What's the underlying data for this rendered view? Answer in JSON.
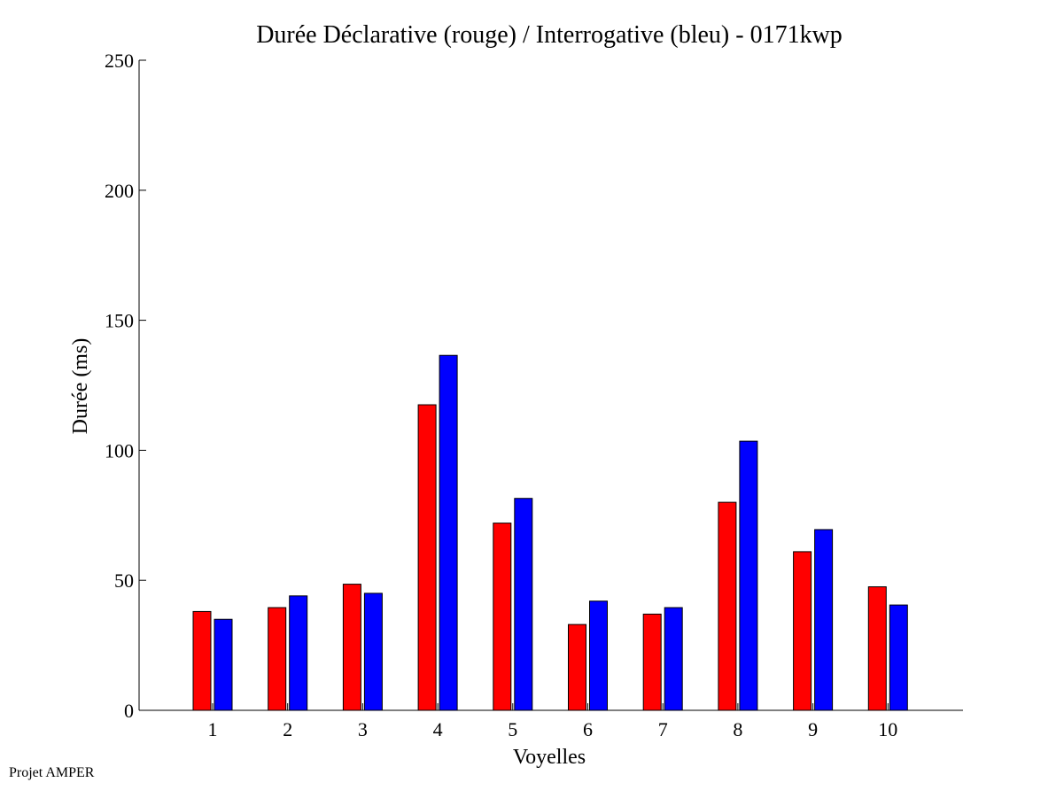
{
  "chart_data": {
    "type": "bar",
    "title": "Durée Déclarative (rouge) / Interrogative (bleu) - 0171kwp",
    "xlabel": "Voyelles",
    "ylabel": "Durée (ms)",
    "ylim": [
      0,
      250
    ],
    "yticks": [
      0,
      50,
      100,
      150,
      200,
      250
    ],
    "categories": [
      "1",
      "2",
      "3",
      "4",
      "5",
      "6",
      "7",
      "8",
      "9",
      "10"
    ],
    "series": [
      {
        "color": "#ff0000",
        "values": [
          38,
          39.5,
          48.5,
          117.5,
          72,
          33,
          37,
          80,
          61,
          47.5
        ]
      },
      {
        "color": "#0000ff",
        "values": [
          35,
          44,
          45,
          136.5,
          81.5,
          42,
          39.5,
          103.5,
          69.5,
          40.5
        ]
      }
    ],
    "grid": false,
    "legend": "none"
  },
  "footer": {
    "note": "Projet AMPER"
  }
}
